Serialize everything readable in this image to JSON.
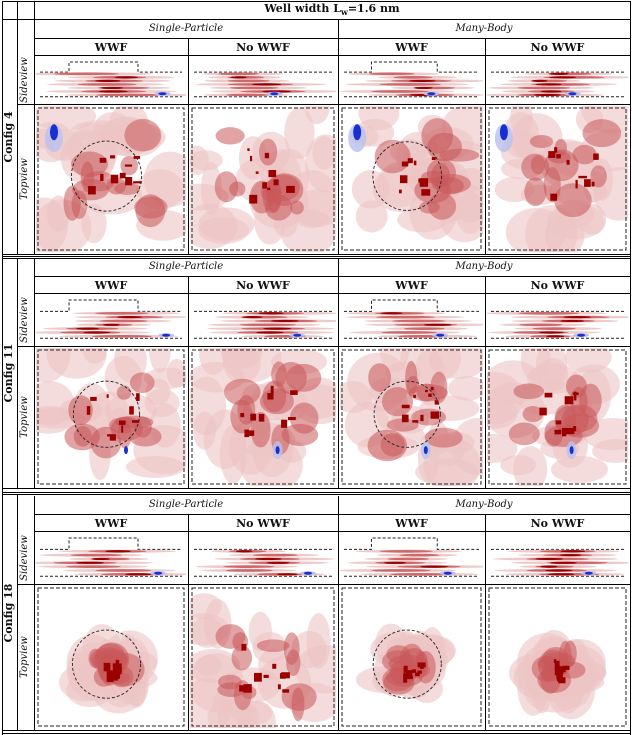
{
  "title": "Well width L",
  "title_sub": "w",
  "title_value": "=1.6 nm",
  "method_single": "Single-Particle",
  "method_many": "Many-Body",
  "col_wwf": "WWF",
  "col_nowwf": "No WWF",
  "row_side": "Sideview",
  "row_top": "Topview",
  "configs": [
    {
      "label": "Config 4"
    },
    {
      "label": "Config 11"
    },
    {
      "label": "Config 18"
    }
  ],
  "colors": {
    "red_dark": "#9b0000",
    "red_mid": "#c8575a",
    "red_light": "#ecc4c4",
    "blue": "#1a2fd0",
    "blue_light": "#b9c0ef"
  }
}
